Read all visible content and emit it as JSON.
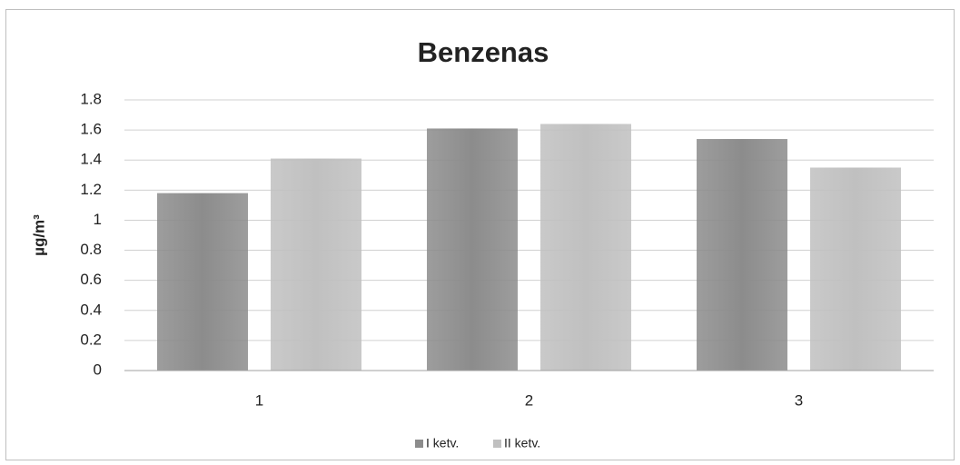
{
  "chart_data": {
    "type": "bar",
    "title": "Benzenas",
    "y_label": "µg/m³",
    "categories": [
      "1",
      "2",
      "3"
    ],
    "series": [
      {
        "name": "I ketv.",
        "color": "#8c8c8c",
        "values": [
          1.18,
          1.61,
          1.54
        ]
      },
      {
        "name": "II ketv.",
        "color": "#c0c0c0",
        "values": [
          1.41,
          1.64,
          1.35
        ]
      }
    ],
    "ylim": [
      0,
      1.8
    ],
    "yticks": [
      0,
      0.2,
      0.4,
      0.6,
      0.8,
      1,
      1.2,
      1.4,
      1.6,
      1.8
    ],
    "grid": true,
    "legend": "bottom"
  }
}
